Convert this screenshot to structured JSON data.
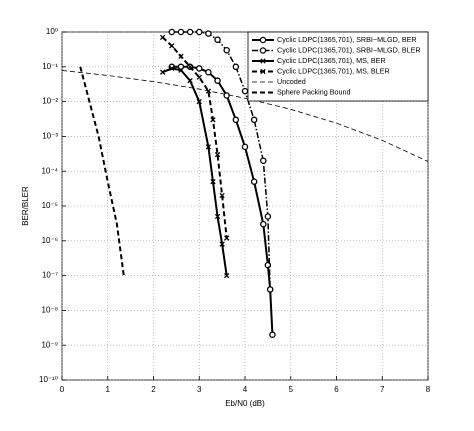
{
  "chart_data": {
    "type": "line",
    "xlabel": "Eb/N0 (dB)",
    "ylabel": "BER/BLER",
    "xlim": [
      0,
      8
    ],
    "xticks": [
      0,
      1,
      2,
      3,
      4,
      5,
      6,
      7,
      8
    ],
    "ylim": [
      1e-10,
      1
    ],
    "log_y": true,
    "grid": true,
    "legend": "upper right",
    "yticks": [
      {
        "value": 1,
        "label": "10⁰"
      },
      {
        "value": 0.1,
        "label": "10⁻¹"
      },
      {
        "value": 0.01,
        "label": "10⁻²"
      },
      {
        "value": 0.001,
        "label": "10⁻³"
      },
      {
        "value": 0.0001,
        "label": "10⁻⁴"
      },
      {
        "value": 1e-05,
        "label": "10⁻⁵"
      },
      {
        "value": 1e-06,
        "label": "10⁻⁶"
      },
      {
        "value": 1e-07,
        "label": "10⁻⁷"
      },
      {
        "value": 1e-08,
        "label": "10⁻⁸"
      },
      {
        "value": 1e-09,
        "label": "10⁻⁹"
      },
      {
        "value": 1e-10,
        "label": "10⁻¹⁰"
      }
    ],
    "series": [
      {
        "name": "Cyclic LDPC(1365,701), SRBI−MLGD, BER",
        "color": "#000000",
        "dash": "solid",
        "marker": "o",
        "width": 2,
        "x": [
          2.4,
          2.6,
          2.8,
          3.0,
          3.2,
          3.4,
          3.6,
          3.8,
          4.0,
          4.2,
          4.4,
          4.5,
          4.55,
          4.6
        ],
        "values": [
          0.1,
          0.1,
          0.1,
          0.09,
          0.07,
          0.04,
          0.015,
          0.003,
          0.0005,
          5e-05,
          3e-06,
          2e-07,
          4e-08,
          2e-09
        ]
      },
      {
        "name": "Cyclic LDPC(1365,701), SRBI−MLGD, BLER",
        "color": "#000000",
        "dash": "dashdot",
        "marker": "o",
        "width": 1.5,
        "x": [
          2.4,
          2.6,
          2.8,
          3.0,
          3.2,
          3.4,
          3.6,
          3.8,
          4.0,
          4.2,
          4.4,
          4.5,
          4.55
        ],
        "values": [
          1,
          1,
          1,
          1,
          0.9,
          0.6,
          0.3,
          0.1,
          0.02,
          0.003,
          0.0002,
          5e-06,
          4e-08
        ]
      },
      {
        "name": "Cyclic LDPC(1365,701), MS, BER",
        "color": "#000000",
        "dash": "solid",
        "marker": "x",
        "width": 2,
        "x": [
          2.2,
          2.4,
          2.6,
          2.8,
          3.0,
          3.2,
          3.3,
          3.4,
          3.5,
          3.6
        ],
        "values": [
          0.07,
          0.09,
          0.08,
          0.04,
          0.01,
          0.0005,
          5e-05,
          5e-06,
          8e-07,
          1e-07
        ]
      },
      {
        "name": "Cyclic LDPC(1365,701), MS, BLER",
        "color": "#000000",
        "dash": "dashed",
        "marker": "x",
        "width": 2,
        "x": [
          2.2,
          2.4,
          2.6,
          2.8,
          3.0,
          3.2,
          3.3,
          3.4,
          3.5,
          3.6
        ],
        "values": [
          0.7,
          0.4,
          0.2,
          0.1,
          0.05,
          0.02,
          0.003,
          0.0003,
          2e-05,
          1.2e-06
        ]
      },
      {
        "name": "Uncoded",
        "color": "#000000",
        "dash": "dashed",
        "marker": "none",
        "width": 0.8,
        "x": [
          0,
          1,
          2,
          3,
          4,
          5,
          6,
          7,
          8
        ],
        "values": [
          0.0786,
          0.0563,
          0.0375,
          0.0229,
          0.0125,
          0.006,
          0.0024,
          0.00077,
          0.00019
        ]
      },
      {
        "name": "Sphere Packing Bound",
        "color": "#000000",
        "dash": "dashed",
        "marker": "none",
        "width": 2,
        "x": [
          0.4,
          0.6,
          0.8,
          1.0,
          1.2,
          1.35
        ],
        "values": [
          0.1,
          0.01,
          0.001,
          5e-05,
          3e-06,
          1e-07
        ]
      }
    ]
  }
}
